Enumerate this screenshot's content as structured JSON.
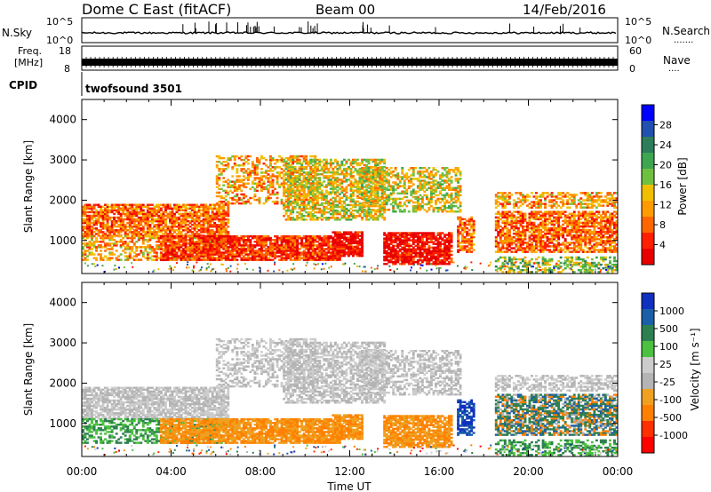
{
  "header": {
    "station": "Dome C East (fitACF)",
    "beam": "Beam 00",
    "date": "14/Feb/2016"
  },
  "top_panels": {
    "nsky_label": "N.Sky",
    "nsearch_label": "N.Search",
    "nsearch_dots": ".......",
    "nsky_ticks": [
      "10^5",
      "10^0"
    ],
    "nsearch_ticks": [
      "10^5",
      "10^0"
    ],
    "freq_label_1": "Freq.",
    "freq_label_2": "[MHz]",
    "freq_ticks": [
      "18",
      "8"
    ],
    "nave_label": "Nave",
    "nave_dots": "....",
    "nave_ticks": [
      "60",
      "0"
    ],
    "cpid_label": "CPID",
    "cpid_value": "twofsound 3501"
  },
  "colors": {
    "power_scale": [
      "#0000ff",
      "#2050b0",
      "#2e7d5a",
      "#3ea650",
      "#70c040",
      "#f0c000",
      "#ff9a00",
      "#ff6600",
      "#ff2000",
      "#e80000"
    ],
    "velocity_scale": [
      "#1030c0",
      "#1a5fa8",
      "#2e8050",
      "#4cc040",
      "#cccccc",
      "#b4b4b4",
      "#f0a020",
      "#ff8000",
      "#ff3000",
      "#ff0000"
    ]
  },
  "chart_data": [
    {
      "type": "heatmap",
      "name": "power",
      "ylabel": "Slant Range [km]",
      "ylim": [
        180,
        4500
      ],
      "yticks": [
        "4000",
        "3000",
        "2000",
        "1000"
      ],
      "colorbar_label": "Power [dB]",
      "colorbar_ticks": [
        "28",
        "24",
        "20",
        "16",
        "12",
        "8",
        "4"
      ],
      "colorbar_range": [
        0,
        32
      ]
    },
    {
      "type": "heatmap",
      "name": "velocity",
      "ylabel": "Slant Range [km]",
      "ylim": [
        180,
        4500
      ],
      "yticks": [
        "4000",
        "3000",
        "2000",
        "1000"
      ],
      "colorbar_label": "Velocity [m s⁻¹]",
      "colorbar_ticks": [
        "1000",
        "500",
        "100",
        "25",
        "-25",
        "-100",
        "-500",
        "-1000"
      ],
      "xlabel": "Time UT",
      "xticks": [
        "00:00",
        "04:00",
        "08:00",
        "12:00",
        "16:00",
        "20:00",
        "00:00"
      ],
      "xlim": [
        0,
        24
      ]
    }
  ]
}
